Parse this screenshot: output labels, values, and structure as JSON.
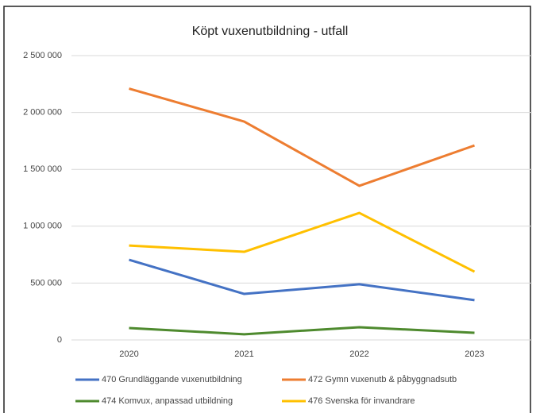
{
  "chart_data": {
    "type": "line",
    "title": "Köpt vuxenutbildning - utfall",
    "categories": [
      "2020",
      "2021",
      "2022",
      "2023"
    ],
    "series": [
      {
        "name": "470 Grundläggande vuxenutbildning",
        "color": "#4472c4",
        "values": [
          705000,
          405000,
          490000,
          350000
        ]
      },
      {
        "name": "472 Gymn vuxenutb & påbyggnadsutb",
        "color": "#ed7d31",
        "values": [
          2210000,
          1920000,
          1355000,
          1710000
        ]
      },
      {
        "name": "474 Komvux, anpassad utbildning",
        "color": "#4e8a2e",
        "values": [
          105000,
          50000,
          112000,
          63000
        ]
      },
      {
        "name": "476 Svenska för invandrare",
        "color": "#ffc000",
        "values": [
          830000,
          775000,
          1117000,
          600000
        ]
      }
    ],
    "ylim": [
      0,
      2500000
    ],
    "yticks": [
      0,
      {
        "value": 500000,
        "label": "500 000"
      },
      {
        "value": 1000000,
        "label": "1 000 000"
      },
      {
        "value": 1500000,
        "label": "1 500 000"
      },
      {
        "value": 2000000,
        "label": "2 000 000"
      },
      {
        "value": 2500000,
        "label": "2 500 000"
      }
    ],
    "grid": true
  }
}
